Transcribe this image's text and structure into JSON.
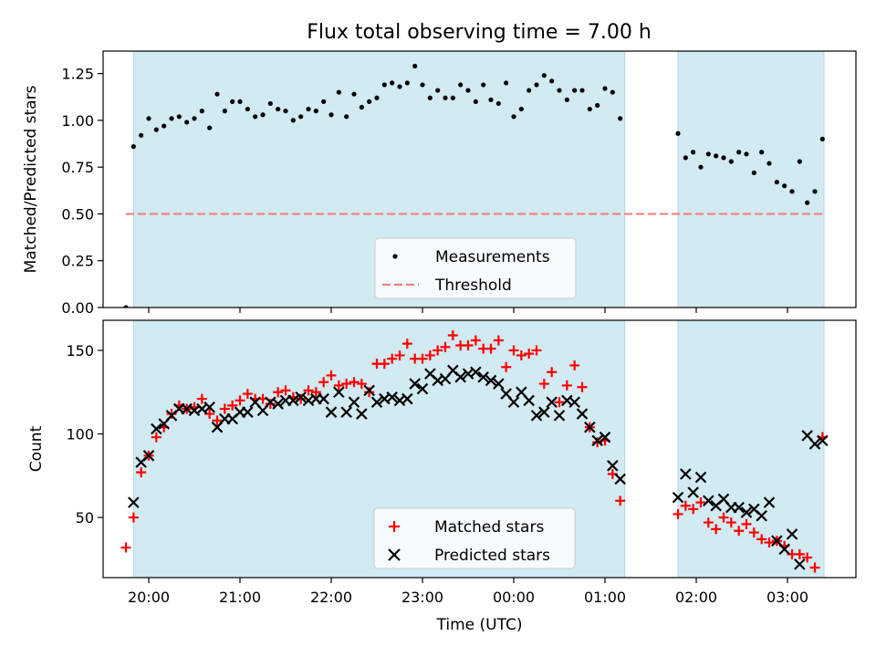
{
  "title": "Flux total observing time = 7.00 h",
  "chart_data": [
    {
      "type": "scatter",
      "ylabel": "Matched/Predicted stars",
      "ylim": [
        0,
        1.37
      ],
      "yticks": [
        0,
        0.25,
        0.5,
        0.75,
        1.0,
        1.25
      ],
      "ytick_labels": [
        "0.00",
        "0.25",
        "0.50",
        "0.75",
        "1.00",
        "1.25"
      ],
      "xlim": [
        "19:30",
        "03:45"
      ],
      "xticks": [
        "20:00",
        "21:00",
        "22:00",
        "23:00",
        "00:00",
        "01:00",
        "02:00",
        "03:00"
      ],
      "show_xtick_labels": false,
      "shaded_intervals": [
        [
          "19:50",
          "01:13"
        ],
        [
          "01:48",
          "03:24"
        ]
      ],
      "shade_color": "#add8e6",
      "threshold": {
        "name": "Threshold",
        "value": 0.5,
        "from": "19:45",
        "to": "03:24",
        "color": "#f08080",
        "style": "dashed"
      },
      "legend": {
        "position": "lower center",
        "entries": [
          "Measurements",
          "Threshold"
        ]
      },
      "series": [
        {
          "name": "Measurements",
          "marker": "dot",
          "color": "#000000",
          "x": [
            "19:45",
            "19:50",
            "19:55",
            "20:00",
            "20:05",
            "20:10",
            "20:15",
            "20:20",
            "20:25",
            "20:30",
            "20:35",
            "20:40",
            "20:45",
            "20:50",
            "20:55",
            "21:00",
            "21:05",
            "21:10",
            "21:15",
            "21:20",
            "21:25",
            "21:30",
            "21:35",
            "21:40",
            "21:45",
            "21:50",
            "21:55",
            "22:00",
            "22:05",
            "22:10",
            "22:15",
            "22:20",
            "22:25",
            "22:30",
            "22:35",
            "22:40",
            "22:45",
            "22:50",
            "22:55",
            "23:00",
            "23:05",
            "23:10",
            "23:15",
            "23:20",
            "23:25",
            "23:30",
            "23:35",
            "23:40",
            "23:45",
            "23:50",
            "23:55",
            "00:00",
            "00:05",
            "00:10",
            "00:15",
            "00:20",
            "00:25",
            "00:30",
            "00:35",
            "00:40",
            "00:45",
            "00:50",
            "00:55",
            "01:00",
            "01:05",
            "01:10",
            "01:48",
            "01:53",
            "01:58",
            "02:03",
            "02:08",
            "02:13",
            "02:18",
            "02:23",
            "02:28",
            "02:33",
            "02:38",
            "02:43",
            "02:48",
            "02:53",
            "02:58",
            "03:03",
            "03:08",
            "03:13",
            "03:18",
            "03:23"
          ],
          "y": [
            0.0,
            0.86,
            0.92,
            1.01,
            0.95,
            0.97,
            1.01,
            1.02,
            0.99,
            1.01,
            1.05,
            0.96,
            1.14,
            1.05,
            1.1,
            1.1,
            1.06,
            1.02,
            1.03,
            1.09,
            1.06,
            1.05,
            1.0,
            1.02,
            1.06,
            1.05,
            1.1,
            1.03,
            1.15,
            1.02,
            1.14,
            1.07,
            1.1,
            1.12,
            1.19,
            1.2,
            1.18,
            1.2,
            1.29,
            1.19,
            1.12,
            1.16,
            1.12,
            1.12,
            1.19,
            1.16,
            1.1,
            1.19,
            1.11,
            1.09,
            1.2,
            1.02,
            1.06,
            1.16,
            1.19,
            1.24,
            1.21,
            1.16,
            1.11,
            1.16,
            1.16,
            1.06,
            1.08,
            1.17,
            1.15,
            1.01,
            0.93,
            0.8,
            0.83,
            0.75,
            0.82,
            0.81,
            0.8,
            0.78,
            0.83,
            0.82,
            0.72,
            0.83,
            0.77,
            0.67,
            0.65,
            0.62,
            0.78,
            0.56,
            0.62,
            0.9
          ]
        }
      ]
    },
    {
      "type": "scatter",
      "xlabel": "Time (UTC)",
      "ylabel": "Count",
      "ylim": [
        14,
        168
      ],
      "yticks": [
        50,
        100,
        150
      ],
      "ytick_labels": [
        "50",
        "100",
        "150"
      ],
      "xlim": [
        "19:30",
        "03:45"
      ],
      "xticks": [
        "20:00",
        "21:00",
        "22:00",
        "23:00",
        "00:00",
        "01:00",
        "02:00",
        "03:00"
      ],
      "xtick_labels": [
        "20:00",
        "21:00",
        "22:00",
        "23:00",
        "00:00",
        "01:00",
        "02:00",
        "03:00"
      ],
      "shaded_intervals": [
        [
          "19:50",
          "01:13"
        ],
        [
          "01:48",
          "03:24"
        ]
      ],
      "shade_color": "#add8e6",
      "legend": {
        "position": "lower center",
        "entries": [
          "Matched stars",
          "Predicted stars"
        ]
      },
      "series": [
        {
          "name": "Matched stars",
          "marker": "plus",
          "color": "#ff0000",
          "x": [
            "19:45",
            "19:50",
            "19:55",
            "20:00",
            "20:05",
            "20:10",
            "20:15",
            "20:20",
            "20:25",
            "20:30",
            "20:35",
            "20:40",
            "20:45",
            "20:50",
            "20:55",
            "21:00",
            "21:05",
            "21:10",
            "21:15",
            "21:20",
            "21:25",
            "21:30",
            "21:35",
            "21:40",
            "21:45",
            "21:50",
            "21:55",
            "22:00",
            "22:05",
            "22:10",
            "22:15",
            "22:20",
            "22:25",
            "22:30",
            "22:35",
            "22:40",
            "22:45",
            "22:50",
            "22:55",
            "23:00",
            "23:05",
            "23:10",
            "23:15",
            "23:20",
            "23:25",
            "23:30",
            "23:35",
            "23:40",
            "23:45",
            "23:50",
            "23:55",
            "00:00",
            "00:05",
            "00:10",
            "00:15",
            "00:20",
            "00:25",
            "00:30",
            "00:35",
            "00:40",
            "00:45",
            "00:50",
            "00:55",
            "01:00",
            "01:05",
            "01:10",
            "01:48",
            "01:53",
            "01:58",
            "02:03",
            "02:08",
            "02:13",
            "02:18",
            "02:23",
            "02:28",
            "02:33",
            "02:38",
            "02:43",
            "02:48",
            "02:53",
            "02:58",
            "03:03",
            "03:08",
            "03:13",
            "03:18",
            "03:23"
          ],
          "y": [
            32,
            50,
            77,
            87,
            98,
            104,
            112,
            117,
            115,
            116,
            121,
            112,
            108,
            115,
            117,
            120,
            124,
            121,
            121,
            118,
            125,
            126,
            122,
            121,
            126,
            125,
            131,
            135,
            129,
            130,
            131,
            130,
            125,
            142,
            142,
            145,
            147,
            154,
            145,
            145,
            147,
            150,
            152,
            159,
            153,
            153,
            156,
            151,
            151,
            156,
            140,
            150,
            147,
            148,
            150,
            130,
            137,
            119,
            129,
            141,
            128,
            104,
            95,
            96,
            76,
            60,
            52,
            57,
            55,
            59,
            47,
            43,
            50,
            47,
            42,
            46,
            41,
            37,
            35,
            36,
            33,
            28,
            28,
            26,
            20,
            98
          ],
          "x_note": "",
          "y_note": ""
        },
        {
          "name": "Predicted stars",
          "marker": "x",
          "color": "#000000",
          "x": [
            "19:50",
            "19:55",
            "20:00",
            "20:05",
            "20:10",
            "20:15",
            "20:20",
            "20:25",
            "20:30",
            "20:35",
            "20:40",
            "20:45",
            "20:50",
            "20:55",
            "21:00",
            "21:05",
            "21:10",
            "21:15",
            "21:20",
            "21:25",
            "21:30",
            "21:35",
            "21:40",
            "21:45",
            "21:50",
            "21:55",
            "22:00",
            "22:05",
            "22:10",
            "22:15",
            "22:20",
            "22:25",
            "22:30",
            "22:35",
            "22:40",
            "22:45",
            "22:50",
            "22:55",
            "23:00",
            "23:05",
            "23:10",
            "23:15",
            "23:20",
            "23:25",
            "23:30",
            "23:35",
            "23:40",
            "23:45",
            "23:50",
            "23:55",
            "00:00",
            "00:05",
            "00:10",
            "00:15",
            "00:20",
            "00:25",
            "00:30",
            "00:35",
            "00:40",
            "00:45",
            "00:50",
            "00:55",
            "01:00",
            "01:05",
            "01:10",
            "01:48",
            "01:53",
            "01:58",
            "02:03",
            "02:08",
            "02:13",
            "02:18",
            "02:23",
            "02:28",
            "02:33",
            "02:38",
            "02:43",
            "02:48",
            "02:53",
            "02:58",
            "03:03",
            "03:08",
            "03:13",
            "03:18",
            "03:23"
          ],
          "y": [
            59,
            83,
            87,
            103,
            106,
            111,
            115,
            115,
            114,
            115,
            116,
            104,
            109,
            109,
            113,
            113,
            119,
            114,
            119,
            118,
            120,
            120,
            122,
            120,
            121,
            121,
            113,
            125,
            113,
            119,
            112,
            126,
            119,
            121,
            122,
            120,
            121,
            130,
            127,
            136,
            132,
            133,
            138,
            134,
            136,
            137,
            134,
            132,
            130,
            124,
            119,
            125,
            120,
            111,
            113,
            119,
            111,
            120,
            119,
            112,
            104,
            96,
            98,
            81,
            73,
            62,
            76,
            65,
            74,
            60,
            57,
            61,
            56,
            56,
            53,
            55,
            51,
            59,
            36,
            31,
            40,
            22,
            99,
            94,
            96
          ],
          "x_note": "",
          "y_note": ""
        }
      ]
    }
  ]
}
